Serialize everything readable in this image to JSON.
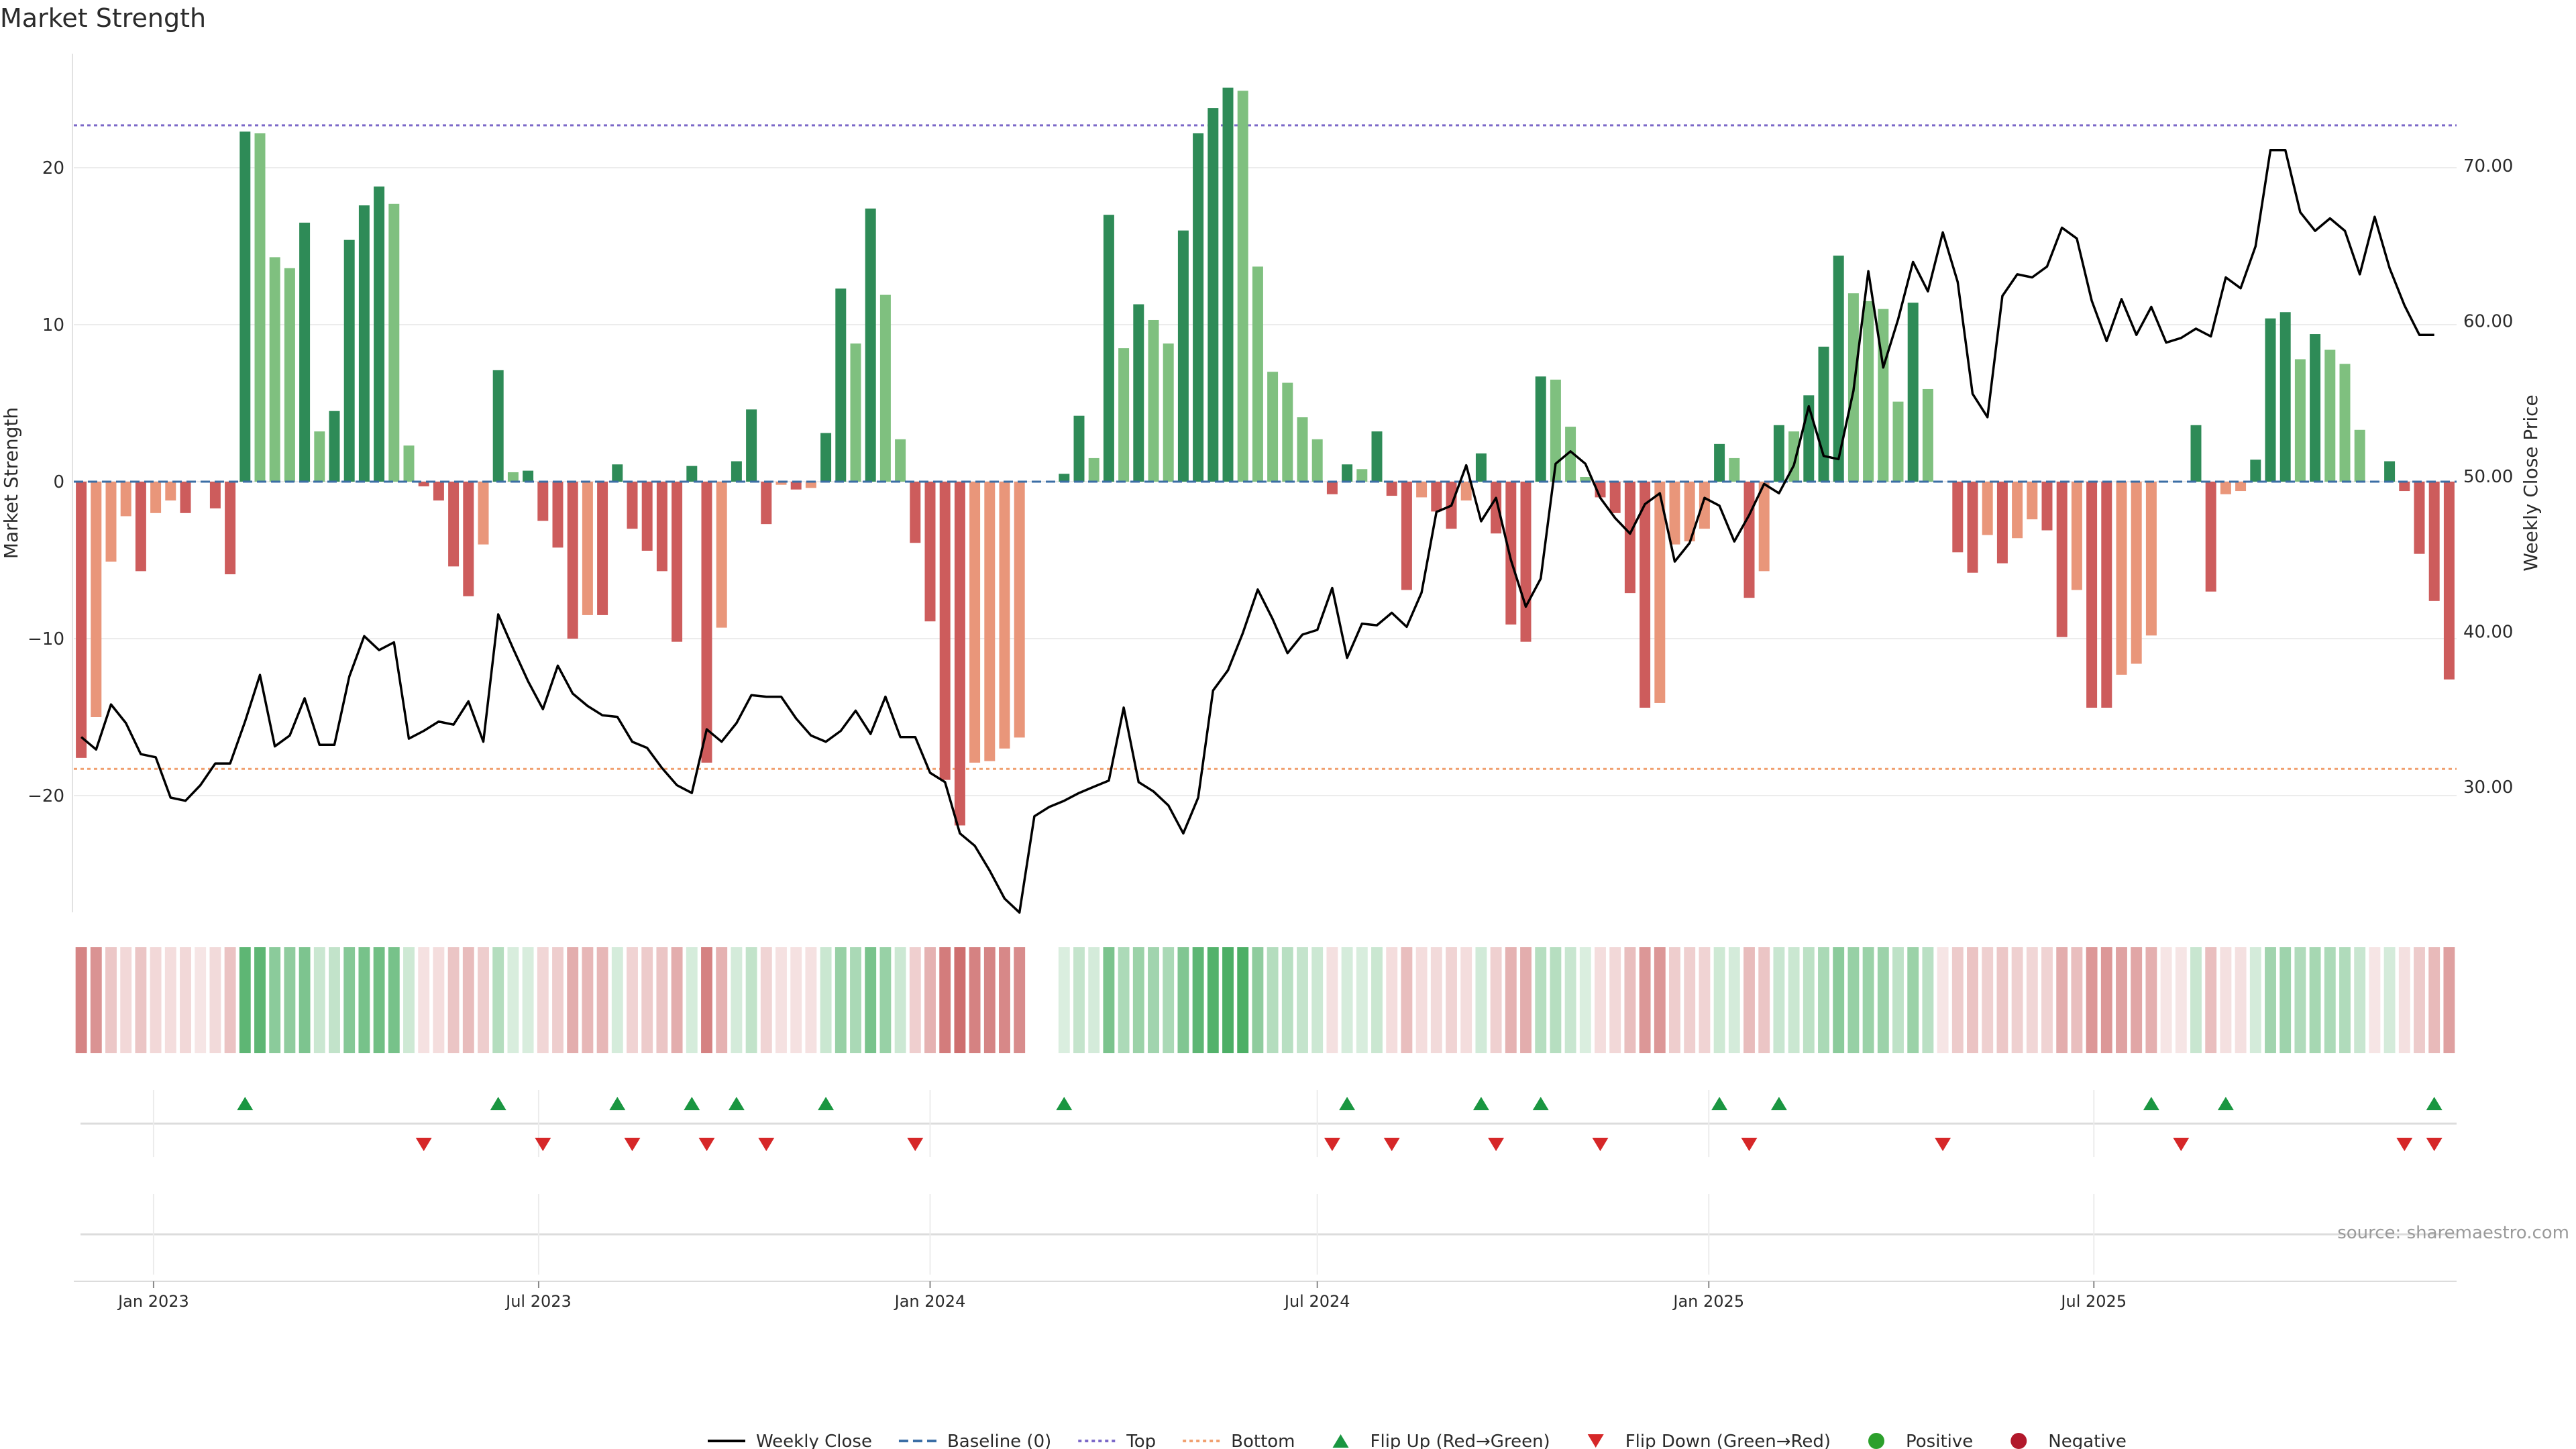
{
  "chart_data": {
    "type": "bar",
    "title": "Market Strength",
    "ylabel": "Market Strength",
    "y2label": "Weekly Close Price",
    "ylim": [
      -27.5,
      27.5
    ],
    "y2lim": [
      20.86,
      78.07
    ],
    "yticks": [
      -20,
      -10,
      0,
      10,
      20
    ],
    "y2ticks": [
      "30.00",
      "40.00",
      "50.00",
      "60.00",
      "70.00"
    ],
    "xticks": [
      "Jan 2023",
      "Jul 2023",
      "Jan 2024",
      "Jul 2024",
      "Jan 2025",
      "Jul 2025"
    ],
    "x_start": "2022-11-28",
    "x_interval": "weekly",
    "top_level": 22.7,
    "bottom_level": -18.3,
    "series": [
      {
        "name": "Weekly Close",
        "kind": "line",
        "color": "#000000",
        "values": [
          33.2,
          32.4,
          35.3,
          34.1,
          32.1,
          31.9,
          29.3,
          29.1,
          30.1,
          31.5,
          31.5,
          34.2,
          37.2,
          32.6,
          33.3,
          35.7,
          32.7,
          32.7,
          37.1,
          39.7,
          38.8,
          39.3,
          33.1,
          33.6,
          34.2,
          34.0,
          35.5,
          32.9,
          41.1,
          38.9,
          36.8,
          35.0,
          37.8,
          36.0,
          35.2,
          34.6,
          34.5,
          32.9,
          32.5,
          31.2,
          30.1,
          29.6,
          33.7,
          32.9,
          34.1,
          35.9,
          35.8,
          35.8,
          34.4,
          33.3,
          32.9,
          33.6,
          34.9,
          33.4,
          35.8,
          33.2,
          33.2,
          30.9,
          30.3,
          27.0,
          26.2,
          24.6,
          22.8,
          21.9,
          28.1,
          28.7,
          29.1,
          29.6,
          30.0,
          30.4,
          35.1,
          30.3,
          29.7,
          28.8,
          27.0,
          29.3,
          36.2,
          37.5,
          39.9,
          42.7,
          40.8,
          38.6,
          39.8,
          40.1,
          42.8,
          38.3,
          40.5,
          40.4,
          41.2,
          40.3,
          42.5,
          47.7,
          48.1,
          50.7,
          47.1,
          48.6,
          44.6,
          41.6,
          43.4,
          50.8,
          51.6,
          50.8,
          48.6,
          47.3,
          46.3,
          48.2,
          48.9,
          44.5,
          45.7,
          48.6,
          48.1,
          45.8,
          47.5,
          49.5,
          48.9,
          50.7,
          54.5,
          51.3,
          51.1,
          55.5,
          63.2,
          57.0,
          60.1,
          63.8,
          61.9,
          65.7,
          62.5,
          55.3,
          53.8,
          61.6,
          63.0,
          62.8,
          63.5,
          66.0,
          65.3,
          61.3,
          58.7,
          61.4,
          59.1,
          60.9,
          58.6,
          58.9,
          59.5,
          59.0,
          62.8,
          62.1,
          64.8,
          71.0,
          71.0,
          67.0,
          65.8,
          66.6,
          65.8,
          63.0,
          66.7,
          63.4,
          61.0,
          59.1,
          59.1
        ]
      },
      {
        "name": "Market Strength",
        "kind": "bar",
        "values": [
          -17.6,
          -15.0,
          -5.1,
          -2.2,
          -5.7,
          -2.0,
          -1.2,
          -2.0,
          0,
          -1.7,
          -5.9,
          22.3,
          22.2,
          14.3,
          13.6,
          16.5,
          3.2,
          4.5,
          15.4,
          17.6,
          18.8,
          17.7,
          2.3,
          -0.3,
          -1.2,
          -5.4,
          -7.3,
          -4.0,
          7.1,
          0.6,
          0.7,
          -2.5,
          -4.2,
          -10.0,
          -8.5,
          -8.5,
          1.1,
          -3.0,
          -4.4,
          -5.7,
          -10.2,
          1.0,
          -17.9,
          -9.3,
          1.3,
          4.6,
          -2.7,
          -0.2,
          -0.5,
          -0.4,
          3.1,
          12.3,
          8.8,
          17.4,
          11.9,
          2.7,
          -3.9,
          -8.9,
          -19.0,
          -21.9,
          -17.9,
          -17.8,
          -17.0,
          -16.3,
          0,
          0,
          0.5,
          4.2,
          1.5,
          17.0,
          8.5,
          11.3,
          10.3,
          8.8,
          16.0,
          22.2,
          23.8,
          25.1,
          24.9,
          13.7,
          7.0,
          6.3,
          4.1,
          2.7,
          -0.8,
          1.1,
          0.8,
          3.2,
          -0.9,
          -6.9,
          -1.0,
          -1.9,
          -3.0,
          -1.2,
          1.8,
          -3.3,
          -9.1,
          -10.2,
          6.7,
          6.5,
          3.5,
          0.3,
          -1.0,
          -2.0,
          -7.1,
          -14.4,
          -14.1,
          -4.0,
          -3.8,
          -3.0,
          2.4,
          1.5,
          -7.4,
          -5.7,
          3.6,
          3.2,
          5.5,
          8.6,
          14.4,
          12.0,
          11.5,
          11.0,
          5.1,
          11.4,
          5.9,
          0,
          -4.5,
          -5.8,
          -3.4,
          -5.2,
          -3.6,
          -2.4,
          -3.1,
          -9.9,
          -6.9,
          -14.4,
          -14.4,
          -12.3,
          -11.6,
          -9.8,
          0,
          0,
          3.6,
          -7.0,
          -0.8,
          -0.6,
          1.4,
          10.4,
          10.8,
          7.8,
          9.4,
          8.4,
          7.5,
          3.3,
          0,
          1.3,
          -0.6,
          -4.6,
          -7.6,
          -12.6
        ]
      },
      {
        "name": "Baseline (0)",
        "kind": "line",
        "style": "dashed",
        "color": "#3b6ea5"
      },
      {
        "name": "Top",
        "kind": "line",
        "style": "dotted",
        "color": "#7b68c8"
      },
      {
        "name": "Bottom",
        "kind": "line",
        "style": "dotted",
        "color": "#f0a070"
      },
      {
        "name": "Flip Up (Red→Green)",
        "kind": "marker",
        "color": "#1a9641",
        "weeks": [
          11,
          28,
          36,
          41,
          44,
          50,
          66,
          85,
          94,
          98,
          110,
          114,
          139,
          144,
          158
        ]
      },
      {
        "name": "Flip Down (Green→Red)",
        "kind": "marker",
        "color": "#d62728",
        "weeks": [
          23,
          31,
          37,
          42,
          46,
          56,
          84,
          88,
          95,
          102,
          112,
          125,
          141,
          156,
          158
        ]
      },
      {
        "name": "Positive",
        "kind": "marker",
        "color": "#2ca02c"
      },
      {
        "name": "Negative",
        "kind": "marker",
        "color": "#b2182b"
      }
    ],
    "colors": {
      "pos_strong": "#2e8b57",
      "pos_light": "#7fc07f",
      "neg_strong": "#cd5c5c",
      "neg_light": "#e9967a"
    },
    "legend_position": "bottom-center",
    "grid": true
  },
  "source": "source: sharemaestro.com"
}
